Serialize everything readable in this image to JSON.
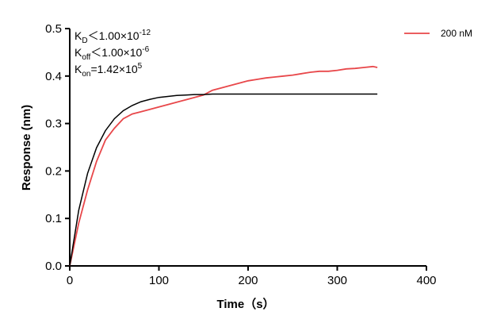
{
  "chart_data": {
    "type": "line",
    "xlabel": "Time（s）",
    "ylabel": "Response (nm)",
    "x": [
      0,
      10,
      20,
      30,
      40,
      50,
      60,
      70,
      80,
      90,
      100,
      110,
      120,
      130,
      140,
      150,
      160,
      170,
      180,
      190,
      200,
      210,
      220,
      230,
      240,
      250,
      260,
      270,
      280,
      290,
      300,
      310,
      320,
      330,
      340,
      345
    ],
    "series": [
      {
        "name": "200 nM",
        "color": "#e8474a",
        "values": [
          0,
          0.09,
          0.16,
          0.22,
          0.265,
          0.29,
          0.31,
          0.32,
          0.325,
          0.33,
          0.335,
          0.34,
          0.345,
          0.35,
          0.355,
          0.36,
          0.37,
          0.375,
          0.38,
          0.385,
          0.39,
          0.393,
          0.396,
          0.398,
          0.4,
          0.402,
          0.405,
          0.408,
          0.41,
          0.41,
          0.412,
          0.415,
          0.416,
          0.418,
          0.42,
          0.418
        ]
      },
      {
        "color": "#000000",
        "values": [
          0,
          0.117,
          0.195,
          0.249,
          0.285,
          0.31,
          0.327,
          0.338,
          0.346,
          0.351,
          0.355,
          0.357,
          0.359,
          0.36,
          0.361,
          0.361,
          0.362,
          0.362,
          0.362,
          0.362,
          0.362,
          0.362,
          0.362,
          0.362,
          0.362,
          0.362,
          0.362,
          0.362,
          0.362,
          0.362,
          0.362,
          0.362,
          0.362,
          0.362,
          0.362,
          0.362
        ]
      }
    ],
    "annotations": [
      {
        "symbol": "K",
        "sub": "D",
        "text": "＜1.00×10",
        "sup": "-12"
      },
      {
        "symbol": "K",
        "sub": "off",
        "text": "＜1.00×10",
        "sup": "-6"
      },
      {
        "symbol": "K",
        "sub": "on",
        "text": "=1.42×10",
        "sup": "5"
      }
    ],
    "xlim": [
      0,
      400
    ],
    "xticks": [
      0,
      100,
      200,
      300,
      400
    ],
    "ylim": [
      0,
      0.5
    ],
    "yticks": [
      {
        "value": 0,
        "label": "0.0"
      },
      0.1,
      0.2,
      0.3,
      0.4,
      0.5
    ],
    "legend": "top-right"
  }
}
